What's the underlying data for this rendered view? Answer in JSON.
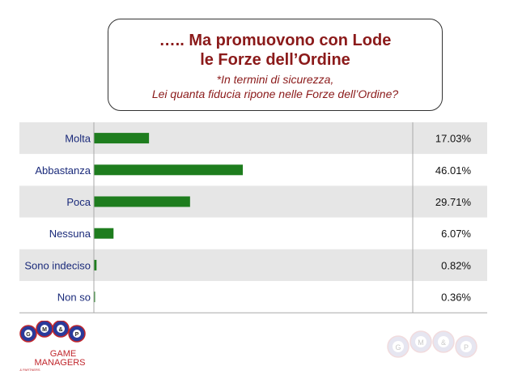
{
  "header": {
    "title_line1": "….. Ma promuovono con Lode",
    "title_line2": "le Forze dell’Ordine",
    "subtitle_line1": "*In termini di sicurezza,",
    "subtitle_line2": "Lei quanta fiducia ripone nelle Forze dell’Ordine?"
  },
  "chart_data": {
    "type": "bar",
    "orientation": "horizontal",
    "categories": [
      "Molta",
      "Abbastanza",
      "Poca",
      "Nessuna",
      "Sono indeciso",
      "Non so"
    ],
    "values": [
      17.03,
      46.01,
      29.71,
      6.07,
      0.82,
      0.36
    ],
    "value_labels": [
      "17.03%",
      "46.01%",
      "29.71%",
      "6.07%",
      "0.82%",
      "0.36%"
    ],
    "bar_color": "#1e7d1e",
    "row_colors": [
      "#e6e6e6",
      "#ffffff"
    ],
    "xlim": [
      0,
      100
    ],
    "grid": false,
    "legend": "none"
  },
  "logo": {
    "balls": [
      "G",
      "M",
      "&",
      "P"
    ],
    "line1": "GAME",
    "line2": "MANAGERS",
    "line3": "& PARTNERS",
    "ball_color": "#2a3a9a",
    "text_color": "#c0262c"
  }
}
